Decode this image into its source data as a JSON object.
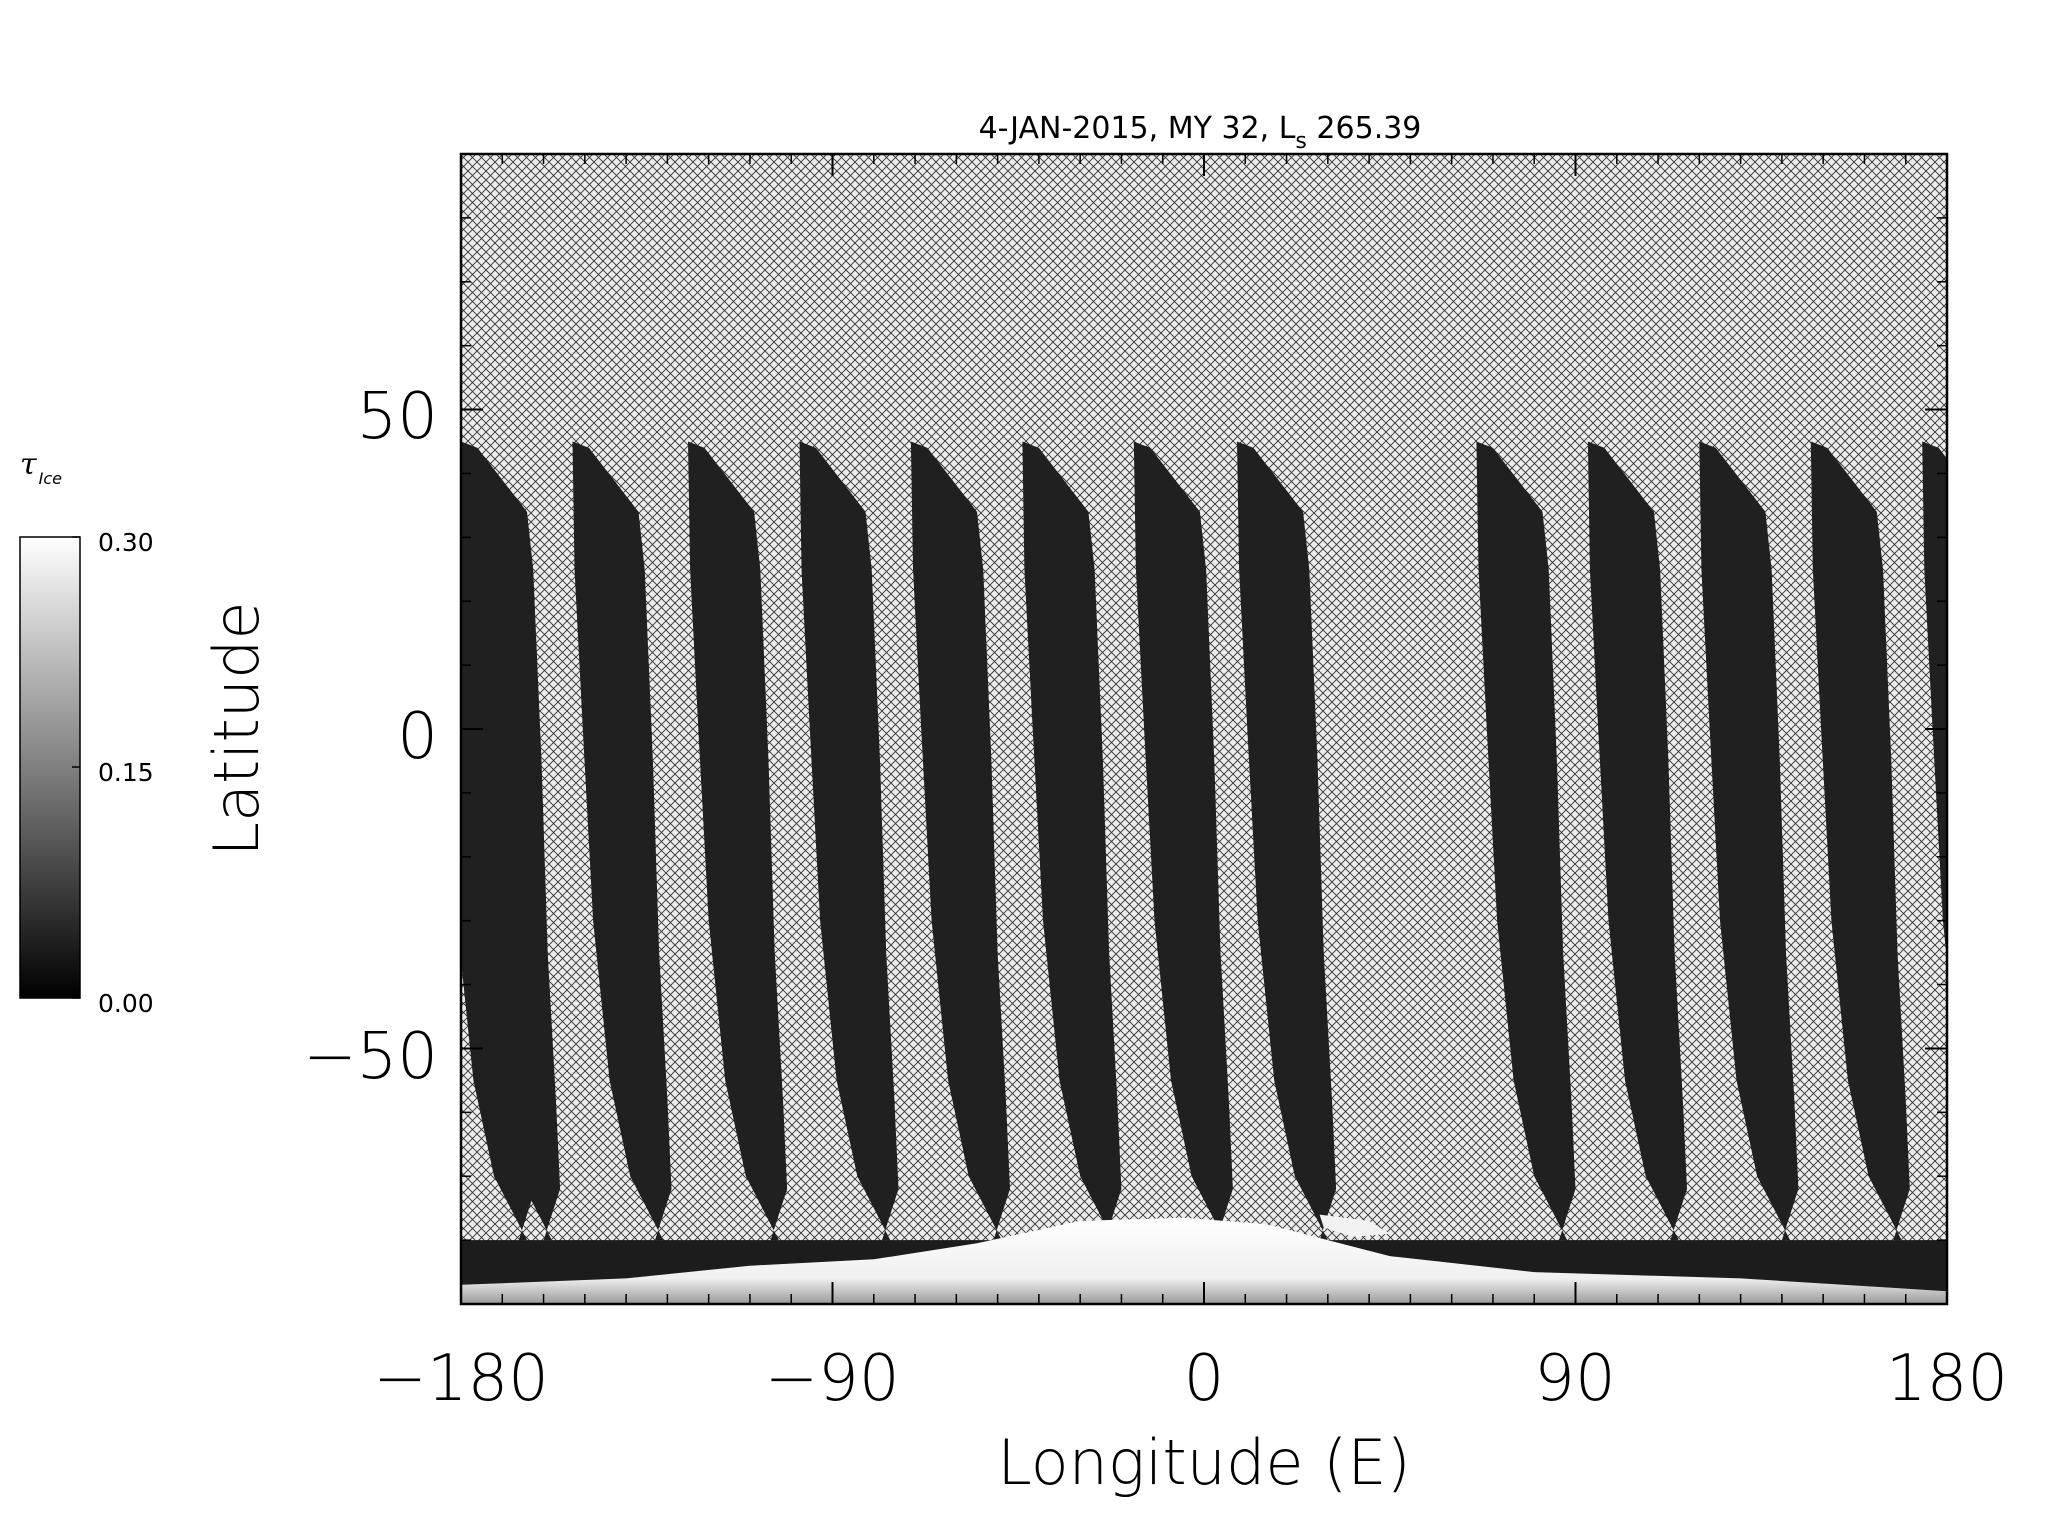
{
  "chart_data": {
    "type": "heatmap",
    "title": "4-JAN-2015, MY 32,  L",
    "title_subscript": "s",
    "title_suffix": " 265.39",
    "xlabel": "Longitude (E)",
    "ylabel": "Latitude",
    "xlim": [
      -180,
      180
    ],
    "ylim": [
      -90,
      90
    ],
    "xticks": [
      "−180",
      "−90",
      "0",
      "90",
      "180"
    ],
    "yticks": [
      "−50",
      "0",
      "50"
    ],
    "xtick_values": [
      -180,
      -90,
      0,
      90,
      180
    ],
    "ytick_values": [
      -50,
      0,
      50
    ],
    "colorbar": {
      "title": "τ",
      "title_subscript": "Ice",
      "range": [
        0.0,
        0.3
      ],
      "tick_labels": [
        "0.30",
        "0.15",
        "0.00"
      ],
      "tick_values": [
        0.3,
        0.15,
        0.0
      ],
      "colormap": "grayscale"
    },
    "missing_data_pattern": "crosshatch",
    "swaths": {
      "count": 13,
      "start_longitudes": [
        -180,
        -153,
        -125,
        -98,
        -71,
        -44,
        -17,
        8,
        66,
        93,
        120,
        147,
        174
      ],
      "top_latitude": 44,
      "bottom_latitude": -80,
      "typical_value": 0.03
    },
    "polar_hood": {
      "description": "high ice opacity near south pole",
      "value": 0.3,
      "latitude_range": [
        -90,
        -70
      ]
    }
  },
  "colors": {
    "background": "#ffffff",
    "hatch_fill": "#e8e8e8",
    "hatch_line": "#222222",
    "swath": "#1a1a1a",
    "polar_hood": "#f4f4f4"
  }
}
